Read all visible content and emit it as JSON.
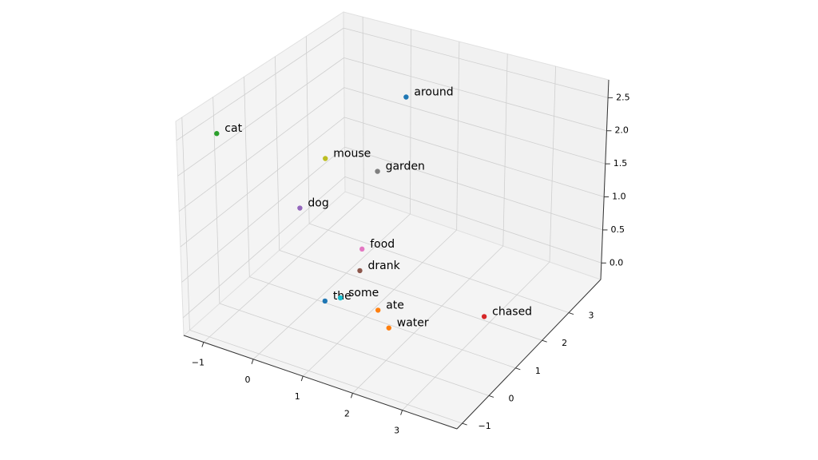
{
  "chart_data": {
    "type": "scatter3d",
    "labels": [
      "the",
      "ate",
      "cat",
      "chased",
      "dog",
      "drank",
      "food",
      "garden",
      "mouse",
      "some",
      "around",
      "water"
    ],
    "x": [
      0.42,
      1.37,
      -1.27,
      3.1,
      -0.36,
      0.79,
      0.69,
      0.75,
      0.12,
      0.6,
      1.03,
      1.82
    ],
    "y": [
      0.58,
      0.82,
      -0.12,
      1.63,
      1.07,
      1.18,
      1.43,
      1.89,
      1.18,
      0.81,
      2.41,
      0.43
    ],
    "z": [
      0,
      0,
      2.3,
      0,
      1.0,
      0.3,
      0.5,
      1.5,
      1.8,
      0,
      2.5,
      0
    ],
    "colors": [
      "#1f77b4",
      "#ff7f0e",
      "#2ca02c",
      "#d62728",
      "#9467bd",
      "#8c564b",
      "#e377c2",
      "#7f7f7f",
      "#bcbd22",
      "#17becf",
      "#1f77b4",
      "#ff7f0e"
    ],
    "xlim": [
      -1.4,
      4.1
    ],
    "ylim": [
      -1.2,
      4.2
    ],
    "zlim": [
      -0.25,
      2.77
    ],
    "xticks": [
      {
        "value": -1,
        "label": "−1"
      },
      0,
      1,
      2,
      3
    ],
    "yticks": [
      {
        "value": -1,
        "label": "−1"
      },
      0,
      1,
      2,
      3
    ],
    "zticks": [
      {
        "value": 0,
        "label": "0.0"
      },
      {
        "value": 0.5,
        "label": "0.5"
      },
      {
        "value": 1,
        "label": "1.0"
      },
      {
        "value": 1.5,
        "label": "1.5"
      },
      {
        "value": 2,
        "label": "2.0"
      },
      {
        "value": 2.5,
        "label": "2.5"
      }
    ],
    "grid": true
  }
}
